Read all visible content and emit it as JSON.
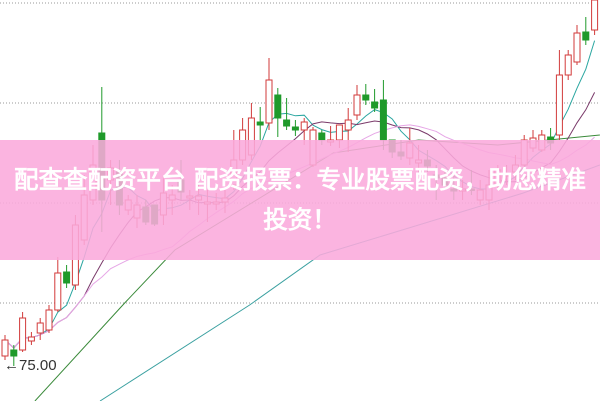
{
  "chart_data": {
    "type": "candlestick",
    "ylim": [
      71.5,
      111.6
    ],
    "grid": true,
    "colors": {
      "up": "#d23a3a",
      "down": "#1f9a2a",
      "ma5": "#2aa6a0",
      "ma10": "#7a3a6a",
      "ma20": "#e6a6e6",
      "long_a": "#3a8a3a",
      "long_b": "#3aa0a0",
      "grid": "#999999"
    },
    "candles": [
      [
        76.0,
        78.1,
        75.6,
        77.6
      ],
      [
        76.6,
        77.1,
        75.0,
        76.0
      ],
      [
        76.6,
        80.4,
        76.4,
        79.8
      ],
      [
        77.5,
        78.4,
        77.1,
        77.9
      ],
      [
        78.3,
        79.8,
        77.6,
        79.3
      ],
      [
        78.6,
        81.1,
        78.3,
        80.6
      ],
      [
        80.6,
        85.9,
        80.4,
        84.3
      ],
      [
        84.4,
        85.1,
        82.8,
        83.3
      ],
      [
        83.1,
        90.1,
        82.6,
        89.1
      ],
      [
        87.6,
        94.1,
        87.1,
        92.1
      ],
      [
        91.6,
        97.1,
        91.1,
        95.1
      ],
      [
        98.3,
        102.9,
        88.4,
        91.6
      ],
      [
        93.6,
        95.6,
        91.1,
        94.8
      ],
      [
        94.4,
        95.6,
        90.1,
        91.1
      ],
      [
        90.6,
        92.1,
        90.1,
        91.6
      ],
      [
        89.8,
        92.1,
        88.8,
        91.1
      ],
      [
        90.9,
        91.6,
        89.1,
        89.4
      ],
      [
        91.1,
        91.1,
        89.0,
        89.2
      ],
      [
        90.1,
        94.1,
        89.1,
        92.3
      ],
      [
        91.6,
        93.1,
        90.1,
        92.1
      ],
      [
        93.6,
        95.6,
        91.6,
        92.4
      ],
      [
        91.8,
        92.6,
        90.6,
        92.0
      ],
      [
        91.6,
        93.1,
        90.1,
        92.0
      ],
      [
        91.2,
        92.6,
        89.4,
        91.4
      ],
      [
        91.2,
        92.3,
        90.6,
        91.4
      ],
      [
        91.4,
        92.6,
        90.3,
        91.8
      ],
      [
        93.1,
        98.6,
        92.6,
        95.6
      ],
      [
        95.6,
        99.8,
        95.1,
        98.6
      ],
      [
        96.1,
        101.3,
        95.6,
        99.8
      ],
      [
        99.4,
        100.9,
        97.6,
        99.1
      ],
      [
        99.3,
        105.8,
        98.6,
        103.6
      ],
      [
        102.1,
        102.8,
        97.9,
        99.8
      ],
      [
        99.6,
        101.8,
        98.6,
        99.0
      ],
      [
        98.9,
        99.6,
        98.0,
        98.6
      ],
      [
        98.6,
        99.8,
        97.1,
        99.4
      ],
      [
        95.1,
        98.9,
        94.9,
        98.6
      ],
      [
        98.3,
        98.6,
        97.1,
        97.6
      ],
      [
        97.4,
        99.0,
        97.0,
        97.6
      ],
      [
        97.6,
        99.1,
        96.8,
        99.1
      ],
      [
        98.6,
        100.8,
        96.4,
        99.6
      ],
      [
        100.1,
        103.1,
        99.6,
        102.1
      ],
      [
        102.1,
        103.2,
        101.1,
        101.6
      ],
      [
        101.4,
        102.7,
        100.4,
        100.8
      ],
      [
        101.6,
        103.6,
        96.6,
        97.6
      ],
      [
        97.6,
        97.6,
        95.8,
        96.4
      ],
      [
        96.4,
        97.6,
        95.6,
        96.0
      ],
      [
        95.8,
        98.8,
        95.1,
        97.3
      ],
      [
        95.3,
        97.1,
        94.1,
        95.6
      ],
      [
        95.6,
        96.6,
        94.4,
        95.0
      ],
      [
        94.1,
        95.1,
        91.6,
        93.8
      ],
      [
        93.8,
        94.6,
        92.6,
        93.1
      ],
      [
        92.7,
        94.6,
        91.6,
        92.5
      ],
      [
        92.5,
        93.6,
        91.6,
        92.7
      ],
      [
        92.7,
        94.6,
        92.1,
        92.6
      ],
      [
        91.6,
        93.6,
        91.1,
        92.6
      ],
      [
        91.6,
        94.6,
        90.6,
        93.1
      ],
      [
        93.1,
        95.1,
        92.6,
        94.6
      ],
      [
        94.0,
        95.1,
        93.1,
        94.2
      ],
      [
        94.4,
        96.1,
        93.6,
        95.1
      ],
      [
        95.1,
        98.1,
        94.6,
        97.6
      ],
      [
        96.8,
        98.6,
        96.4,
        97.8
      ],
      [
        96.6,
        98.6,
        96.4,
        98.1
      ],
      [
        97.9,
        98.8,
        96.6,
        97.3
      ],
      [
        98.1,
        106.6,
        97.6,
        104.1
      ],
      [
        104.1,
        106.6,
        103.6,
        106.1
      ],
      [
        105.4,
        109.1,
        105.1,
        108.3
      ],
      [
        108.4,
        109.9,
        107.1,
        107.6
      ],
      [
        108.6,
        111.6,
        108.1,
        111.6
      ]
    ],
    "moving_averages": [
      5,
      10,
      20
    ],
    "long_lines": [
      {
        "color_key": "long_a",
        "points": [
          [
            3.4,
            71.5
          ],
          [
            13.6,
            81.3
          ],
          [
            19.3,
            86.6
          ],
          [
            37.3,
            96.3
          ],
          [
            47,
            97.6
          ],
          [
            56,
            97.1
          ],
          [
            67.6,
            98.1
          ]
        ]
      },
      {
        "color_key": "long_b",
        "points": [
          [
            10.8,
            71.5
          ],
          [
            27.8,
            81.1
          ],
          [
            35.8,
            86.1
          ],
          [
            47,
            89.1
          ],
          [
            58.9,
            92.3
          ],
          [
            67.6,
            95.1
          ]
        ]
      }
    ],
    "annotations": {
      "low_marker": "←75.00",
      "low_index": 1
    }
  },
  "banner": {
    "text": "配查查配资平台 配资报票：专业股票配资，助您精准投资！",
    "color": "#fbaadc"
  }
}
